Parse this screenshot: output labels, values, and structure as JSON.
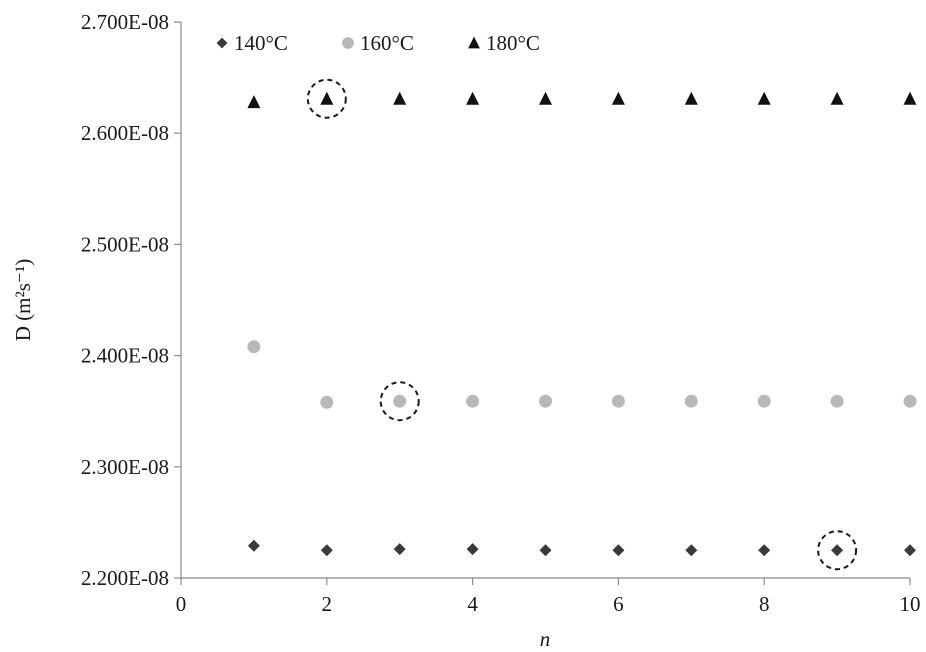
{
  "chart_data": {
    "type": "scatter",
    "title": "",
    "xlabel": "n",
    "ylabel": "D (m²s⁻¹)",
    "xlim": [
      0,
      10
    ],
    "ylim": [
      2.2e-08,
      2.7e-08
    ],
    "x_ticks": [
      0,
      2,
      4,
      6,
      8,
      10
    ],
    "x_tick_labels": [
      "0",
      "2",
      "4",
      "6",
      "8",
      "10"
    ],
    "y_ticks": [
      2.2e-08,
      2.3e-08,
      2.4e-08,
      2.5e-08,
      2.6e-08,
      2.7e-08
    ],
    "y_tick_labels": [
      "2.200E-08",
      "2.300E-08",
      "2.400E-08",
      "2.500E-08",
      "2.600E-08",
      "2.700E-08"
    ],
    "grid": false,
    "legend_position": "top-left",
    "series": [
      {
        "name": "140°C",
        "marker": "diamond",
        "color": "#3a3a3a",
        "x": [
          1,
          2,
          3,
          4,
          5,
          6,
          7,
          8,
          9,
          10
        ],
        "y": [
          2.229e-08,
          2.225e-08,
          2.226e-08,
          2.226e-08,
          2.225e-08,
          2.225e-08,
          2.225e-08,
          2.225e-08,
          2.225e-08,
          2.225e-08
        ],
        "highlighted_x": 9
      },
      {
        "name": "160°C",
        "marker": "circle",
        "color": "#b8b8b8",
        "x": [
          1,
          2,
          3,
          4,
          5,
          6,
          7,
          8,
          9,
          10
        ],
        "y": [
          2.408e-08,
          2.358e-08,
          2.359e-08,
          2.359e-08,
          2.359e-08,
          2.359e-08,
          2.359e-08,
          2.359e-08,
          2.359e-08,
          2.359e-08
        ],
        "highlighted_x": 3
      },
      {
        "name": "180°C",
        "marker": "triangle",
        "color": "#111111",
        "x": [
          1,
          2,
          3,
          4,
          5,
          6,
          7,
          8,
          9,
          10
        ],
        "y": [
          2.628e-08,
          2.631e-08,
          2.631e-08,
          2.631e-08,
          2.631e-08,
          2.631e-08,
          2.631e-08,
          2.631e-08,
          2.631e-08,
          2.631e-08
        ],
        "highlighted_x": 2
      }
    ]
  }
}
